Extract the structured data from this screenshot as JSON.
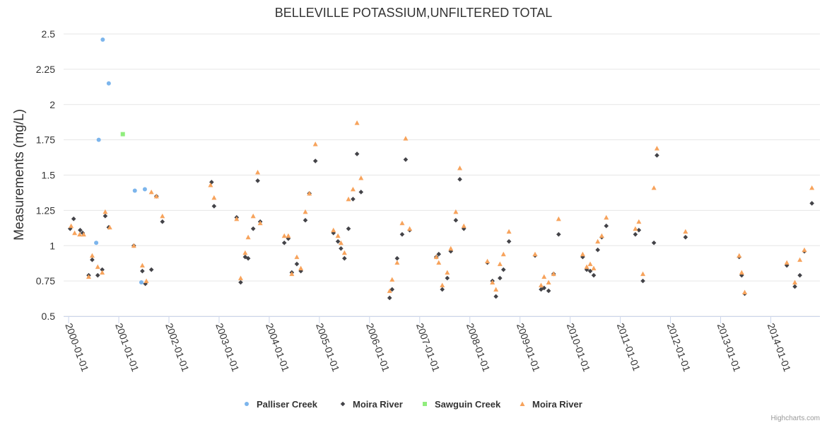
{
  "chart_data": {
    "type": "scatter",
    "title": "BELLEVILLE POTASSIUM,UNFILTERED TOTAL",
    "ylabel": "Measurements (mg/L)",
    "xlabel": "",
    "ylim": [
      0.5,
      2.5
    ],
    "yticks": [
      "0.5",
      "0.75",
      "1",
      "1.25",
      "1.5",
      "1.75",
      "2",
      "2.25",
      "2.5"
    ],
    "xlim": [
      1999.9,
      2014.98
    ],
    "xticks": [
      {
        "year": 2000,
        "label": "2000-01-01"
      },
      {
        "year": 2001,
        "label": "2001-01-01"
      },
      {
        "year": 2002,
        "label": "2002-01-01"
      },
      {
        "year": 2003,
        "label": "2003-01-01"
      },
      {
        "year": 2004,
        "label": "2004-01-01"
      },
      {
        "year": 2005,
        "label": "2005-01-01"
      },
      {
        "year": 2006,
        "label": "2006-01-01"
      },
      {
        "year": 2007,
        "label": "2007-01-01"
      },
      {
        "year": 2008,
        "label": "2008-01-01"
      },
      {
        "year": 2009,
        "label": "2009-01-01"
      },
      {
        "year": 2010,
        "label": "2010-01-01"
      },
      {
        "year": 2011,
        "label": "2011-01-01"
      },
      {
        "year": 2012,
        "label": "2012-01-01"
      },
      {
        "year": 2013,
        "label": "2013-01-01"
      },
      {
        "year": 2014,
        "label": "2014-01-01"
      }
    ],
    "legend_position": "bottom-center",
    "series": [
      {
        "name": "Palliser Creek",
        "marker": "circle",
        "color": "#7cb5ec",
        "points": [
          [
            2000.55,
            1.02
          ],
          [
            2000.6,
            1.75
          ],
          [
            2000.68,
            2.46
          ],
          [
            2000.8,
            2.15
          ],
          [
            2001.32,
            1.39
          ],
          [
            2001.45,
            0.74
          ],
          [
            2001.52,
            1.4
          ]
        ]
      },
      {
        "name": "Moira River",
        "marker": "diamond",
        "color": "#434348",
        "points": [
          [
            2000.03,
            1.12
          ],
          [
            2000.1,
            1.19
          ],
          [
            2000.23,
            1.11
          ],
          [
            2000.28,
            1.09
          ],
          [
            2000.4,
            0.79
          ],
          [
            2000.47,
            0.9
          ],
          [
            2000.58,
            0.79
          ],
          [
            2000.67,
            0.83
          ],
          [
            2000.73,
            1.21
          ],
          [
            2000.8,
            1.13
          ],
          [
            2001.3,
            1.0
          ],
          [
            2001.47,
            0.82
          ],
          [
            2001.53,
            0.73
          ],
          [
            2001.65,
            0.83
          ],
          [
            2001.75,
            1.35
          ],
          [
            2001.87,
            1.17
          ],
          [
            2002.85,
            1.45
          ],
          [
            2002.9,
            1.28
          ],
          [
            2003.35,
            1.2
          ],
          [
            2003.43,
            0.74
          ],
          [
            2003.52,
            0.92
          ],
          [
            2003.58,
            0.91
          ],
          [
            2003.68,
            1.12
          ],
          [
            2003.77,
            1.46
          ],
          [
            2003.82,
            1.17
          ],
          [
            2004.3,
            1.02
          ],
          [
            2004.38,
            1.05
          ],
          [
            2004.45,
            0.81
          ],
          [
            2004.55,
            0.87
          ],
          [
            2004.63,
            0.82
          ],
          [
            2004.72,
            1.18
          ],
          [
            2004.8,
            1.37
          ],
          [
            2004.92,
            1.6
          ],
          [
            2005.28,
            1.09
          ],
          [
            2005.37,
            1.03
          ],
          [
            2005.43,
            0.98
          ],
          [
            2005.5,
            0.91
          ],
          [
            2005.58,
            1.12
          ],
          [
            2005.67,
            1.33
          ],
          [
            2005.75,
            1.65
          ],
          [
            2005.83,
            1.38
          ],
          [
            2006.4,
            0.63
          ],
          [
            2006.45,
            0.69
          ],
          [
            2006.55,
            0.91
          ],
          [
            2006.65,
            1.08
          ],
          [
            2006.72,
            1.61
          ],
          [
            2006.8,
            1.11
          ],
          [
            2007.33,
            0.92
          ],
          [
            2007.38,
            0.94
          ],
          [
            2007.45,
            0.69
          ],
          [
            2007.55,
            0.77
          ],
          [
            2007.62,
            0.96
          ],
          [
            2007.72,
            1.18
          ],
          [
            2007.8,
            1.47
          ],
          [
            2007.88,
            1.12
          ],
          [
            2008.35,
            0.88
          ],
          [
            2008.45,
            0.75
          ],
          [
            2008.52,
            0.64
          ],
          [
            2008.6,
            0.77
          ],
          [
            2008.67,
            0.83
          ],
          [
            2008.78,
            1.03
          ],
          [
            2009.3,
            0.93
          ],
          [
            2009.42,
            0.69
          ],
          [
            2009.48,
            0.7
          ],
          [
            2009.57,
            0.68
          ],
          [
            2009.67,
            0.8
          ],
          [
            2009.77,
            1.08
          ],
          [
            2010.25,
            0.92
          ],
          [
            2010.33,
            0.83
          ],
          [
            2010.4,
            0.82
          ],
          [
            2010.47,
            0.79
          ],
          [
            2010.55,
            0.97
          ],
          [
            2010.63,
            1.06
          ],
          [
            2010.72,
            1.14
          ],
          [
            2011.3,
            1.08
          ],
          [
            2011.37,
            1.11
          ],
          [
            2011.45,
            0.75
          ],
          [
            2011.67,
            1.02
          ],
          [
            2011.73,
            1.64
          ],
          [
            2012.3,
            1.06
          ],
          [
            2013.37,
            0.92
          ],
          [
            2013.42,
            0.79
          ],
          [
            2013.48,
            0.66
          ],
          [
            2014.32,
            0.86
          ],
          [
            2014.48,
            0.71
          ],
          [
            2014.58,
            0.79
          ],
          [
            2014.67,
            0.96
          ],
          [
            2014.82,
            1.3
          ]
        ]
      },
      {
        "name": "Sawguin Creek",
        "marker": "square",
        "color": "#90ed7d",
        "points": [
          [
            2001.08,
            1.79
          ]
        ]
      },
      {
        "name": "Moira River",
        "marker": "triangle",
        "color": "#f7a35c",
        "points": [
          [
            2000.05,
            1.14
          ],
          [
            2000.12,
            1.09
          ],
          [
            2000.22,
            1.08
          ],
          [
            2000.3,
            1.08
          ],
          [
            2000.4,
            0.78
          ],
          [
            2000.47,
            0.93
          ],
          [
            2000.58,
            0.85
          ],
          [
            2000.67,
            0.81
          ],
          [
            2000.73,
            1.24
          ],
          [
            2000.82,
            1.13
          ],
          [
            2001.3,
            1.0
          ],
          [
            2001.47,
            0.86
          ],
          [
            2001.55,
            0.75
          ],
          [
            2001.65,
            1.38
          ],
          [
            2001.75,
            1.35
          ],
          [
            2001.87,
            1.21
          ],
          [
            2002.83,
            1.43
          ],
          [
            2002.9,
            1.34
          ],
          [
            2003.35,
            1.19
          ],
          [
            2003.43,
            0.77
          ],
          [
            2003.52,
            0.95
          ],
          [
            2003.58,
            1.06
          ],
          [
            2003.68,
            1.21
          ],
          [
            2003.77,
            1.52
          ],
          [
            2003.82,
            1.16
          ],
          [
            2004.3,
            1.07
          ],
          [
            2004.38,
            1.07
          ],
          [
            2004.45,
            0.8
          ],
          [
            2004.55,
            0.92
          ],
          [
            2004.63,
            0.84
          ],
          [
            2004.72,
            1.24
          ],
          [
            2004.8,
            1.37
          ],
          [
            2004.92,
            1.72
          ],
          [
            2005.28,
            1.11
          ],
          [
            2005.37,
            1.07
          ],
          [
            2005.43,
            1.02
          ],
          [
            2005.5,
            0.95
          ],
          [
            2005.58,
            1.33
          ],
          [
            2005.67,
            1.4
          ],
          [
            2005.75,
            1.87
          ],
          [
            2005.83,
            1.48
          ],
          [
            2006.4,
            0.68
          ],
          [
            2006.45,
            0.76
          ],
          [
            2006.55,
            0.88
          ],
          [
            2006.65,
            1.16
          ],
          [
            2006.72,
            1.76
          ],
          [
            2006.8,
            1.12
          ],
          [
            2007.33,
            0.92
          ],
          [
            2007.38,
            0.88
          ],
          [
            2007.45,
            0.72
          ],
          [
            2007.55,
            0.81
          ],
          [
            2007.62,
            0.98
          ],
          [
            2007.72,
            1.24
          ],
          [
            2007.8,
            1.55
          ],
          [
            2007.88,
            1.14
          ],
          [
            2008.35,
            0.89
          ],
          [
            2008.45,
            0.74
          ],
          [
            2008.52,
            0.69
          ],
          [
            2008.6,
            0.87
          ],
          [
            2008.67,
            0.94
          ],
          [
            2008.78,
            1.1
          ],
          [
            2009.3,
            0.94
          ],
          [
            2009.42,
            0.72
          ],
          [
            2009.48,
            0.78
          ],
          [
            2009.57,
            0.74
          ],
          [
            2009.67,
            0.8
          ],
          [
            2009.77,
            1.19
          ],
          [
            2010.25,
            0.94
          ],
          [
            2010.33,
            0.85
          ],
          [
            2010.4,
            0.87
          ],
          [
            2010.47,
            0.84
          ],
          [
            2010.55,
            1.03
          ],
          [
            2010.63,
            1.07
          ],
          [
            2010.72,
            1.2
          ],
          [
            2011.3,
            1.12
          ],
          [
            2011.37,
            1.17
          ],
          [
            2011.45,
            0.8
          ],
          [
            2011.67,
            1.41
          ],
          [
            2011.73,
            1.69
          ],
          [
            2012.3,
            1.1
          ],
          [
            2013.37,
            0.93
          ],
          [
            2013.42,
            0.81
          ],
          [
            2013.48,
            0.67
          ],
          [
            2014.32,
            0.88
          ],
          [
            2014.48,
            0.74
          ],
          [
            2014.58,
            0.9
          ],
          [
            2014.67,
            0.97
          ],
          [
            2014.82,
            1.41
          ]
        ]
      }
    ]
  },
  "credit": "Highcharts.com"
}
